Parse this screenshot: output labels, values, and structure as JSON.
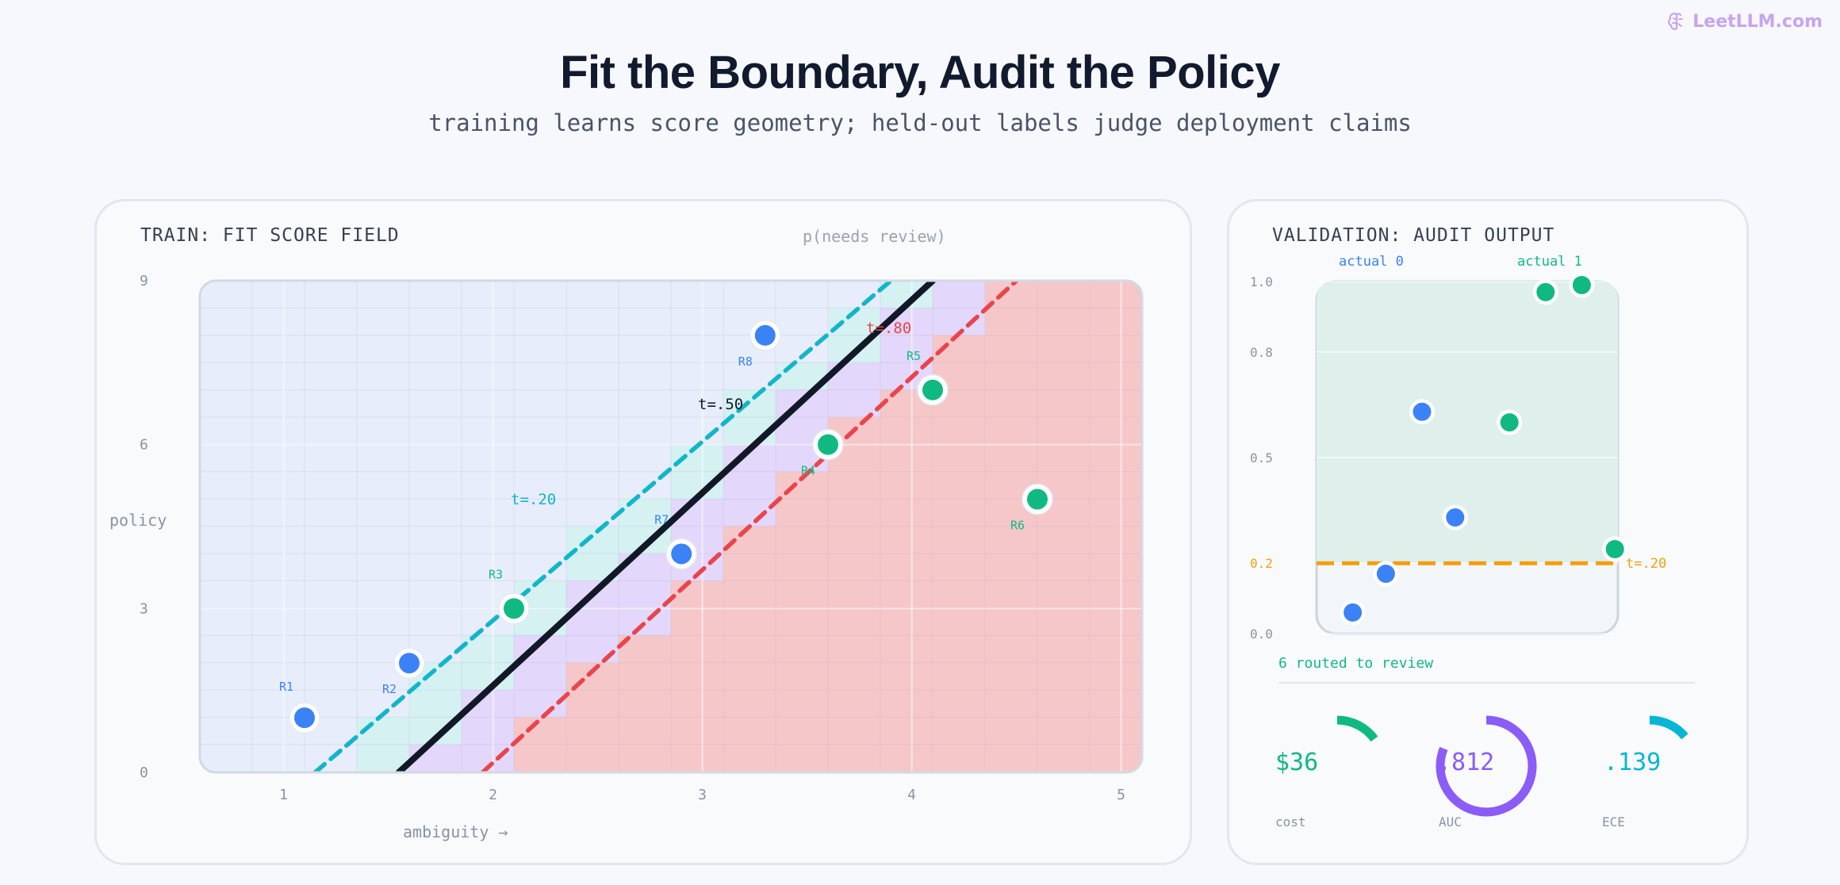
{
  "brand": {
    "name": "LeetLLM.com",
    "color": "#c9a4ec"
  },
  "title": "Fit the Boundary, Audit the Policy",
  "subtitle": "training learns score geometry; held-out labels judge deployment claims",
  "train_panel": {
    "heading": "TRAIN: FIT SCORE FIELD",
    "legend_label": "p(needs review)",
    "y_axis_label": "policy",
    "x_axis_label": "ambiguity →",
    "y_ticks": [
      "9",
      "6",
      "3",
      "0"
    ],
    "x_ticks": [
      "1",
      "2",
      "3",
      "4",
      "5"
    ],
    "threshold_labels": {
      "low": "t=.20",
      "mid": "t=.50",
      "high": "t=.80"
    },
    "colors": {
      "low_line": "#13b5c9",
      "mid_line": "#111827",
      "high_line": "#e8454c",
      "blue_point": "#3b82f6",
      "green_point": "#10b981"
    }
  },
  "chart_data": [
    {
      "type": "scatter",
      "title": "TRAIN: FIT SCORE FIELD",
      "xlabel": "ambiguity →",
      "ylabel": "policy",
      "xlim": [
        0.6,
        5.1
      ],
      "ylim": [
        0,
        9
      ],
      "x_ticks": [
        1,
        2,
        3,
        4,
        5
      ],
      "y_ticks": [
        0,
        3,
        6,
        9
      ],
      "thresholds": [
        {
          "label": "t=.20",
          "x0": 1.15,
          "y0": 0,
          "x1": 3.9,
          "y1": 9
        },
        {
          "label": "t=.50",
          "x0": 1.55,
          "y0": 0,
          "x1": 4.1,
          "y1": 9
        },
        {
          "label": "t=.80",
          "x0": 1.95,
          "y0": 0,
          "x1": 4.5,
          "y1": 9
        }
      ],
      "points": [
        {
          "label": "R1",
          "x": 1.1,
          "y": 1.0,
          "class": 0
        },
        {
          "label": "R2",
          "x": 1.6,
          "y": 2.0,
          "class": 0
        },
        {
          "label": "R3",
          "x": 2.1,
          "y": 3.0,
          "class": 1
        },
        {
          "label": "R7",
          "x": 2.9,
          "y": 4.0,
          "class": 0
        },
        {
          "label": "R4",
          "x": 3.6,
          "y": 6.0,
          "class": 1
        },
        {
          "label": "R5",
          "x": 4.1,
          "y": 7.0,
          "class": 1
        },
        {
          "label": "R6",
          "x": 4.6,
          "y": 5.0,
          "class": 1
        },
        {
          "label": "R8",
          "x": 3.3,
          "y": 8.0,
          "class": 0
        }
      ]
    },
    {
      "type": "scatter",
      "title": "VALIDATION: AUDIT OUTPUT",
      "categories": [
        "actual 0",
        "actual 1"
      ],
      "ylim": [
        0,
        1
      ],
      "y_ticks": [
        0.0,
        0.2,
        0.5,
        0.8,
        1.0
      ],
      "threshold": {
        "label": "t=.20",
        "value": 0.2
      },
      "points": [
        {
          "x": 0.12,
          "y": 0.06,
          "class": 0
        },
        {
          "x": 0.23,
          "y": 0.17,
          "class": 0
        },
        {
          "x": 0.35,
          "y": 0.63,
          "class": 0
        },
        {
          "x": 0.46,
          "y": 0.33,
          "class": 0
        },
        {
          "x": 0.64,
          "y": 0.6,
          "class": 1
        },
        {
          "x": 0.76,
          "y": 0.97,
          "class": 1
        },
        {
          "x": 0.88,
          "y": 0.99,
          "class": 1
        },
        {
          "x": 0.99,
          "y": 0.24,
          "class": 1
        }
      ]
    }
  ],
  "validation_panel": {
    "heading": "VALIDATION: AUDIT OUTPUT",
    "col_left": "actual 0",
    "col_right": "actual 1",
    "y_ticks": [
      "1.0",
      "0.8",
      "0.5",
      "0.2",
      "0.0"
    ],
    "threshold_label": "t=.20",
    "routed": "6 routed to review",
    "metrics": [
      {
        "value": "$36",
        "label": "cost",
        "fraction": 0.15,
        "color": "#10b981"
      },
      {
        "value": ".812",
        "label": "AUC",
        "fraction": 0.812,
        "color": "#8b5cf6"
      },
      {
        "value": ".139",
        "label": "ECE",
        "fraction": 0.139,
        "color": "#06b6d4"
      }
    ]
  }
}
